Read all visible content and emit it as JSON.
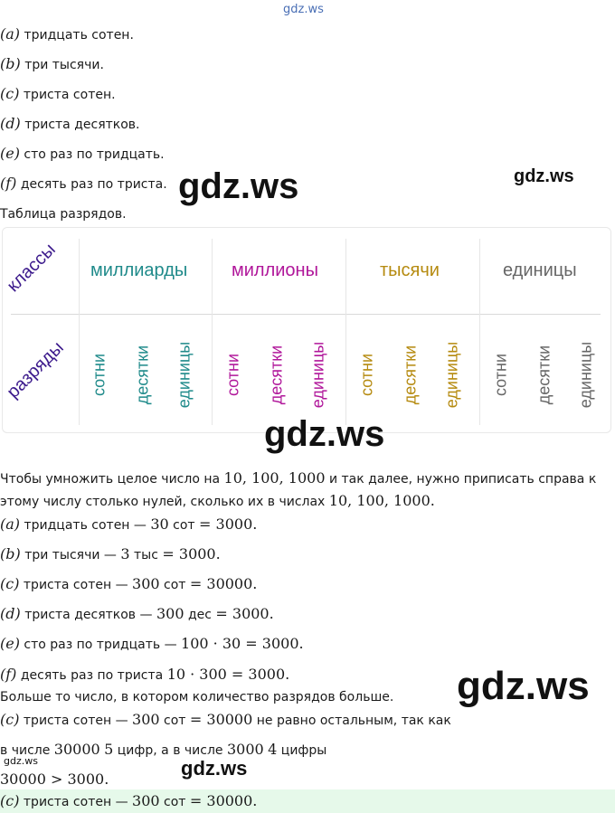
{
  "watermarks": {
    "top": "gdz.ws",
    "mid1": "gdz.ws",
    "mid1_right": "gdz.ws",
    "mid2": "gdz.ws",
    "mid3": "gdz.ws",
    "small1": "gdz.ws",
    "small2": "gdz.ws"
  },
  "intro_items": [
    {
      "label": "(a)",
      "text": "тридцать сотен."
    },
    {
      "label": "(b)",
      "text": "три тысячи."
    },
    {
      "label": "(c)",
      "text": "триста сотен."
    },
    {
      "label": "(d)",
      "text": "триста десятков."
    },
    {
      "label": "(e)",
      "text": "сто раз по тридцать."
    },
    {
      "label": "(f)",
      "text": "десять раз по триста."
    }
  ],
  "table_caption": "Таблица разрядов.",
  "table": {
    "side_classes": "классы",
    "side_ranks": "разряды",
    "classes": [
      {
        "name": "миллиарды",
        "color": "#1f8a8a"
      },
      {
        "name": "миллионы",
        "color": "#b0169a"
      },
      {
        "name": "тысячи",
        "color": "#b58a0f"
      },
      {
        "name": "единицы",
        "color": "#666666"
      }
    ],
    "ranks": [
      "сотни",
      "десятки",
      "единицы"
    ]
  },
  "rule": {
    "line1_a": "Чтобы умножить целое число на ",
    "line1_m": "10, 100, 1000",
    "line1_b": " и так далее, нужно приписать справа к",
    "line2_a": "этому числу столько нулей, сколько их в числах ",
    "line2_m": "10, 100, 1000."
  },
  "answers": [
    {
      "label": "(a)",
      "text": "тридцать сотен — ",
      "m1": "30",
      "unit": " сот ",
      "eq": "= 3000."
    },
    {
      "label": "(b)",
      "text": "три тысячи — ",
      "m1": "3",
      "unit": " тыс ",
      "eq": "= 3000."
    },
    {
      "label": "(c)",
      "text": "триста сотен — ",
      "m1": "300",
      "unit": " сот ",
      "eq": "= 30000."
    },
    {
      "label": "(d)",
      "text": "триста десятков — ",
      "m1": "300",
      "unit": " дес ",
      "eq": "= 3000."
    },
    {
      "label": "(e)",
      "text": "сто раз по тридцать — ",
      "m1": "100 · 30",
      "unit": "",
      "eq": " = 3000."
    },
    {
      "label": "(f)",
      "text": "десять раз по триста ",
      "m1": "10 · 300",
      "unit": "",
      "eq": " = 3000."
    }
  ],
  "conclusion": {
    "line1": "Больше то число, в котором количество разрядов больше.",
    "line2_label": "(c)",
    "line2_text": "триста сотен — ",
    "line2_m": "300",
    "line2_unit": " сот ",
    "line2_eq": "= 30000",
    "line2_tail": " не равно остальным, так как",
    "line3_a": "в числе ",
    "line3_m1": "30000",
    "line3_b": " ",
    "line3_m2": "5",
    "line3_c": " цифр, а в числе ",
    "line3_m3": "3000",
    "line3_d": " ",
    "line3_m4": "4",
    "line3_e": " цифры",
    "line4": "30000 > 3000."
  },
  "final": {
    "label": "(c)",
    "text": "триста сотен — ",
    "m": "300",
    "unit": " сот ",
    "eq": "= 30000."
  }
}
